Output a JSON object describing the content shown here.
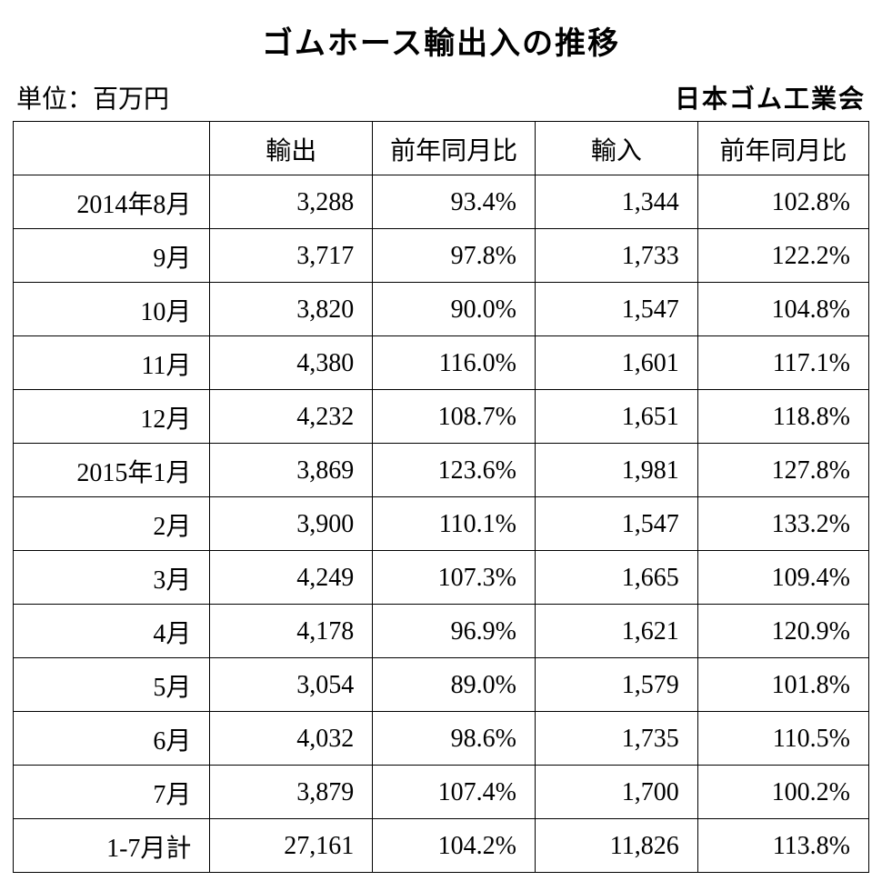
{
  "title": "ゴムホース輸出入の推移",
  "unit_label": "単位：百万円",
  "org_label": "日本ゴム工業会",
  "table": {
    "type": "table",
    "background_color": "#ffffff",
    "border_color": "#000000",
    "text_color": "#000000",
    "font_family": "serif",
    "header_fontsize": 28,
    "cell_fontsize": 28,
    "cell_align": "right",
    "header_align": "center",
    "column_widths_pct": [
      23,
      19,
      19,
      19,
      20
    ],
    "columns": [
      "",
      "輸出",
      "前年同月比",
      "輸入",
      "前年同月比"
    ],
    "rows": [
      [
        "2014年8月",
        "3,288",
        "93.4%",
        "1,344",
        "102.8%"
      ],
      [
        "9月",
        "3,717",
        "97.8%",
        "1,733",
        "122.2%"
      ],
      [
        "10月",
        "3,820",
        "90.0%",
        "1,547",
        "104.8%"
      ],
      [
        "11月",
        "4,380",
        "116.0%",
        "1,601",
        "117.1%"
      ],
      [
        "12月",
        "4,232",
        "108.7%",
        "1,651",
        "118.8%"
      ],
      [
        "2015年1月",
        "3,869",
        "123.6%",
        "1,981",
        "127.8%"
      ],
      [
        "2月",
        "3,900",
        "110.1%",
        "1,547",
        "133.2%"
      ],
      [
        "3月",
        "4,249",
        "107.3%",
        "1,665",
        "109.4%"
      ],
      [
        "4月",
        "4,178",
        "96.9%",
        "1,621",
        "120.9%"
      ],
      [
        "5月",
        "3,054",
        "89.0%",
        "1,579",
        "101.8%"
      ],
      [
        "6月",
        "4,032",
        "98.6%",
        "1,735",
        "110.5%"
      ],
      [
        "7月",
        "3,879",
        "107.4%",
        "1,700",
        "100.2%"
      ],
      [
        "1-7月計",
        "27,161",
        "104.2%",
        "11,826",
        "113.8%"
      ]
    ]
  }
}
